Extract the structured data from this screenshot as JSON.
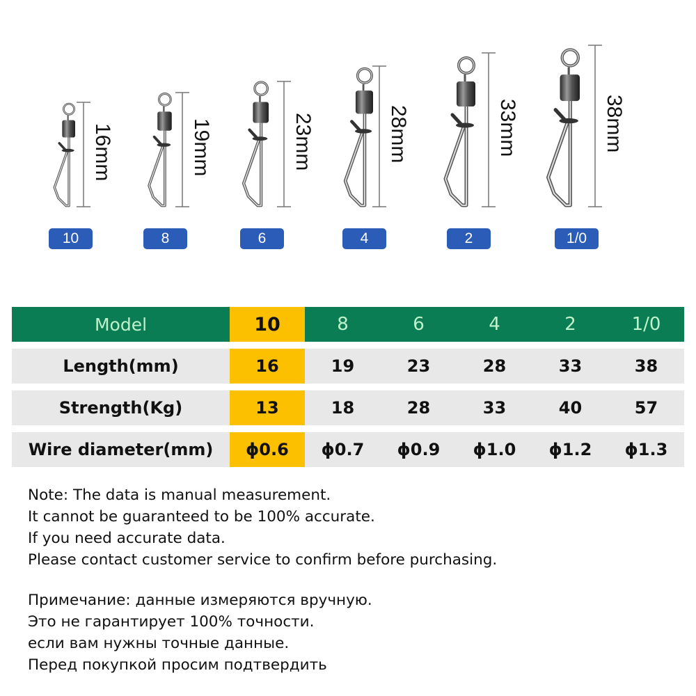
{
  "products": [
    {
      "model": "10",
      "length_label": "16mm"
    },
    {
      "model": "8",
      "length_label": "19mm"
    },
    {
      "model": "6",
      "length_label": "23mm"
    },
    {
      "model": "4",
      "length_label": "28mm"
    },
    {
      "model": "2",
      "length_label": "33mm"
    },
    {
      "model": "1/0",
      "length_label": "38mm"
    }
  ],
  "table": {
    "header": [
      "Model",
      "10",
      "8",
      "6",
      "4",
      "2",
      "1/0"
    ],
    "rows": [
      [
        "Length(mm)",
        "16",
        "19",
        "23",
        "28",
        "33",
        "38"
      ],
      [
        "Strength(Kg)",
        "13",
        "18",
        "28",
        "33",
        "40",
        "57"
      ],
      [
        "Wire diameter(mm)",
        "ϕ0.6",
        "ϕ0.7",
        "ϕ0.9",
        "ϕ1.0",
        "ϕ1.2",
        "ϕ1.3"
      ]
    ],
    "highlighted_column": "10"
  },
  "notes_en": [
    "Note: The data is manual measurement.",
    "It cannot be guaranteed to be 100% accurate.",
    "If you need accurate data.",
    "Please contact customer service to confirm before purchasing."
  ],
  "notes_ru": [
    "Примечание: данные измеряются вручную.",
    "Это не гарантирует 100% точности.",
    "если вам нужны точные данные.",
    "Перед покупкой просим подтвердить"
  ],
  "colors": {
    "header_green": "#0b7d54",
    "header_text": "#bff2cc",
    "highlight_yellow": "#fcc000",
    "row_gray": "#e8e8e8",
    "size_badge_blue": "#2b5cb8"
  }
}
